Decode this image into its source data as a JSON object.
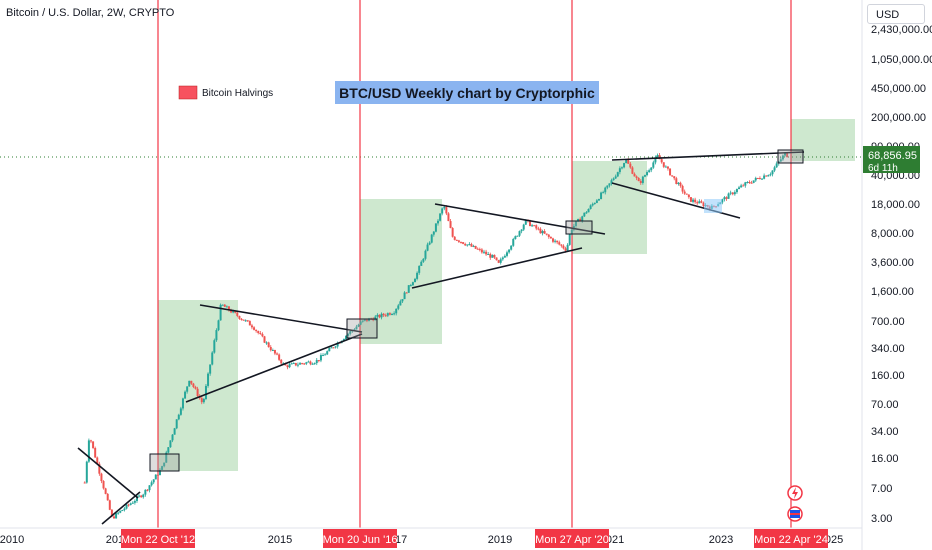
{
  "header": {
    "symbol_title": "Bitcoin / U.S. Dollar, 2W, CRYPTO"
  },
  "currency_button": {
    "label": "USD"
  },
  "annotation_title": "BTC/USD Weekly chart by Cryptorphic",
  "legend": {
    "label": "Bitcoin Halvings",
    "color": "#f7525f"
  },
  "colors": {
    "up": "#26a69a",
    "down": "#ef5350",
    "halving_line": "#f23645",
    "zone": "#a5d6a7",
    "current_price_bg": "#2e7d32",
    "title_bg": "#8ab4f0"
  },
  "current_price": {
    "value": "68,856.95",
    "countdown": "6d 11h"
  },
  "chart_data": {
    "type": "candlestick",
    "title": "BTC/USD Weekly chart by Cryptorphic",
    "y_scale": "log",
    "y_ticks": [
      "2,430,000.00",
      "1,050,000.00",
      "450,000.00",
      "200,000.00",
      "90,000.00",
      "40,000.00",
      "18,000.00",
      "8,000.00",
      "3,600.00",
      "1,600.00",
      "700.00",
      "340.00",
      "160.00",
      "70.00",
      "34.00",
      "16.00",
      "7.00",
      "3.00"
    ],
    "x_ticks": [
      "2010",
      "2013",
      "2015",
      "2017",
      "2019",
      "2021",
      "2023",
      "2025"
    ],
    "halvings": [
      {
        "date": "Mon 22 Oct '12"
      },
      {
        "date": "Mon 20 Jun '16"
      },
      {
        "date": "Mon 27 Apr '20"
      },
      {
        "date": "Mon 22 Apr '24"
      }
    ],
    "price_path": [
      [
        "2011-05",
        8
      ],
      [
        "2011-06",
        30
      ],
      [
        "2011-11",
        3
      ],
      [
        "2012-06",
        6
      ],
      [
        "2012-10",
        12
      ],
      [
        "2013-04",
        140
      ],
      [
        "2013-07",
        70
      ],
      [
        "2013-11",
        1100
      ],
      [
        "2014-06",
        600
      ],
      [
        "2015-01",
        200
      ],
      [
        "2015-08",
        230
      ],
      [
        "2016-06",
        680
      ],
      [
        "2017-01",
        900
      ],
      [
        "2017-06",
        2500
      ],
      [
        "2017-12",
        17000
      ],
      [
        "2018-02",
        7000
      ],
      [
        "2018-11",
        4000
      ],
      [
        "2018-12",
        3300
      ],
      [
        "2019-06",
        11000
      ],
      [
        "2020-03",
        5000
      ],
      [
        "2020-04",
        8800
      ],
      [
        "2020-12",
        28000
      ],
      [
        "2021-04",
        60000
      ],
      [
        "2021-07",
        31000
      ],
      [
        "2021-11",
        66000
      ],
      [
        "2022-06",
        20000
      ],
      [
        "2022-11",
        16000
      ],
      [
        "2023-06",
        30000
      ],
      [
        "2023-12",
        42000
      ],
      [
        "2024-03",
        70000
      ],
      [
        "2024-04",
        66000
      ]
    ],
    "current_price": 68856.95
  }
}
